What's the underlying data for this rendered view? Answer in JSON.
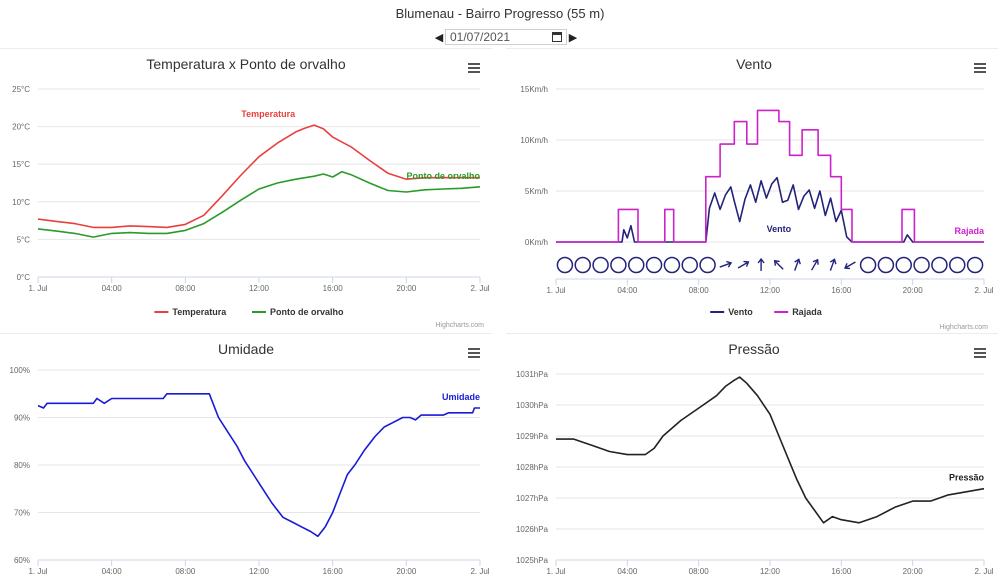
{
  "page": {
    "title": "Blumenau - Bairro Progresso (55 m)",
    "date_value": "01/07/2021",
    "prev_icon": "caret-left-icon",
    "next_icon": "caret-right-icon",
    "calendar_icon": "calendar-icon"
  },
  "chart_data": [
    {
      "id": "temp",
      "type": "line",
      "title": "Temperatura x Ponto de orvalho",
      "xlim": [
        0,
        24
      ],
      "ylim": [
        0,
        25
      ],
      "x_ticks": [
        0,
        4,
        8,
        12,
        16,
        20,
        24
      ],
      "x_tick_labels": [
        "1. Jul",
        "04:00",
        "08:00",
        "12:00",
        "16:00",
        "20:00",
        "2. Jul"
      ],
      "y_ticks": [
        0,
        5,
        10,
        15,
        20,
        25
      ],
      "y_tick_labels": [
        "0°C",
        "5°C",
        "10°C",
        "15°C",
        "20°C",
        "25°C"
      ],
      "grid": true,
      "legend": "bottom-center",
      "credits": "Highcharts.com",
      "series": [
        {
          "name": "Temperatura",
          "color": "#e8403e",
          "label_at": "peak",
          "points": [
            [
              0,
              7.7
            ],
            [
              1,
              7.4
            ],
            [
              2,
              7.1
            ],
            [
              3,
              6.6
            ],
            [
              4,
              6.6
            ],
            [
              5,
              6.8
            ],
            [
              6,
              6.7
            ],
            [
              7,
              6.6
            ],
            [
              8,
              7.0
            ],
            [
              9,
              8.2
            ],
            [
              10,
              10.8
            ],
            [
              11,
              13.5
            ],
            [
              12,
              16.0
            ],
            [
              13,
              17.8
            ],
            [
              14,
              19.3
            ],
            [
              14.5,
              19.8
            ],
            [
              15,
              20.2
            ],
            [
              15.5,
              19.7
            ],
            [
              16,
              18.6
            ],
            [
              17,
              17.3
            ],
            [
              18,
              15.5
            ],
            [
              19,
              13.8
            ],
            [
              20,
              13.0
            ],
            [
              21,
              13.2
            ],
            [
              22,
              13.2
            ],
            [
              23,
              13.2
            ],
            [
              24,
              13.2
            ]
          ]
        },
        {
          "name": "Ponto de orvalho",
          "color": "#2a9a2a",
          "label_at": "end",
          "points": [
            [
              0,
              6.4
            ],
            [
              1,
              6.1
            ],
            [
              2,
              5.8
            ],
            [
              3,
              5.3
            ],
            [
              4,
              5.8
            ],
            [
              5,
              5.9
            ],
            [
              6,
              5.8
            ],
            [
              7,
              5.8
            ],
            [
              8,
              6.2
            ],
            [
              9,
              7.1
            ],
            [
              10,
              8.6
            ],
            [
              11,
              10.2
            ],
            [
              12,
              11.7
            ],
            [
              13,
              12.5
            ],
            [
              14,
              13.0
            ],
            [
              15,
              13.4
            ],
            [
              15.5,
              13.7
            ],
            [
              16,
              13.3
            ],
            [
              16.5,
              14.0
            ],
            [
              17,
              13.6
            ],
            [
              18,
              12.5
            ],
            [
              19,
              11.5
            ],
            [
              20,
              11.3
            ],
            [
              21,
              11.6
            ],
            [
              22,
              11.7
            ],
            [
              23,
              11.8
            ],
            [
              24,
              12.0
            ]
          ]
        }
      ]
    },
    {
      "id": "vento",
      "type": "line",
      "title": "Vento",
      "xlim": [
        0,
        24
      ],
      "ylim": [
        0,
        15
      ],
      "x_ticks": [
        0,
        4,
        8,
        12,
        16,
        20,
        24
      ],
      "x_tick_labels": [
        "1. Jul",
        "04:00",
        "08:00",
        "12:00",
        "16:00",
        "20:00",
        "2. Jul"
      ],
      "y_ticks": [
        0,
        5,
        10,
        15
      ],
      "y_tick_labels": [
        "0Km/h",
        "5Km/h",
        "10Km/h",
        "15Km/h"
      ],
      "grid": true,
      "legend": "bottom-center",
      "credits": "Highcharts.com",
      "series": [
        {
          "name": "Vento",
          "color": "#23237a",
          "label_at": "mid",
          "points": [
            [
              0,
              0
            ],
            [
              3.7,
              0
            ],
            [
              3.8,
              1.2
            ],
            [
              4.0,
              0.4
            ],
            [
              4.2,
              1.6
            ],
            [
              4.4,
              0
            ],
            [
              5.5,
              0
            ],
            [
              6.0,
              0
            ],
            [
              8.4,
              0
            ],
            [
              8.6,
              3.3
            ],
            [
              8.9,
              4.8
            ],
            [
              9.2,
              3.2
            ],
            [
              9.5,
              4.6
            ],
            [
              9.8,
              5.4
            ],
            [
              10.0,
              4.0
            ],
            [
              10.3,
              2.0
            ],
            [
              10.6,
              4.2
            ],
            [
              10.9,
              5.6
            ],
            [
              11.2,
              3.9
            ],
            [
              11.5,
              6.0
            ],
            [
              11.8,
              4.3
            ],
            [
              12.1,
              5.7
            ],
            [
              12.4,
              6.3
            ],
            [
              12.7,
              3.9
            ],
            [
              13.0,
              4.1
            ],
            [
              13.3,
              5.6
            ],
            [
              13.6,
              3.2
            ],
            [
              13.9,
              4.5
            ],
            [
              14.2,
              5.1
            ],
            [
              14.5,
              3.3
            ],
            [
              14.8,
              5.0
            ],
            [
              15.1,
              2.6
            ],
            [
              15.4,
              4.3
            ],
            [
              15.7,
              2.0
            ],
            [
              16.0,
              3.1
            ],
            [
              16.3,
              0.5
            ],
            [
              16.6,
              0
            ],
            [
              19.5,
              0
            ],
            [
              19.7,
              0.7
            ],
            [
              20.0,
              0
            ],
            [
              24,
              0
            ]
          ]
        },
        {
          "name": "Rajada",
          "color": "#cc22cc",
          "label_at": "end",
          "points": [
            [
              0,
              0
            ],
            [
              3.5,
              0
            ],
            [
              3.5,
              3.2
            ],
            [
              4.6,
              3.2
            ],
            [
              4.6,
              0
            ],
            [
              6.1,
              0
            ],
            [
              6.1,
              3.2
            ],
            [
              6.6,
              3.2
            ],
            [
              6.6,
              0
            ],
            [
              8.4,
              0
            ],
            [
              8.4,
              6.4
            ],
            [
              9.2,
              6.4
            ],
            [
              9.2,
              9.6
            ],
            [
              10.0,
              9.6
            ],
            [
              10.0,
              11.8
            ],
            [
              10.7,
              11.8
            ],
            [
              10.7,
              9.6
            ],
            [
              11.3,
              9.6
            ],
            [
              11.3,
              12.9
            ],
            [
              12.5,
              12.9
            ],
            [
              12.5,
              11.8
            ],
            [
              13.1,
              11.8
            ],
            [
              13.1,
              8.5
            ],
            [
              13.8,
              8.5
            ],
            [
              13.8,
              11.0
            ],
            [
              14.7,
              11.0
            ],
            [
              14.7,
              8.5
            ],
            [
              15.4,
              8.5
            ],
            [
              15.4,
              6.4
            ],
            [
              16.0,
              6.4
            ],
            [
              16.0,
              3.2
            ],
            [
              16.6,
              3.2
            ],
            [
              16.6,
              0
            ],
            [
              19.4,
              0
            ],
            [
              19.4,
              3.2
            ],
            [
              20.1,
              3.2
            ],
            [
              20.1,
              0
            ],
            [
              24,
              0
            ]
          ]
        }
      ],
      "direction_row": [
        {
          "h": 0.5,
          "icon": "calm-circle-icon"
        },
        {
          "h": 1.5,
          "icon": "calm-circle-icon"
        },
        {
          "h": 2.5,
          "icon": "calm-circle-icon"
        },
        {
          "h": 3.5,
          "icon": "calm-circle-icon"
        },
        {
          "h": 4.5,
          "icon": "calm-circle-icon"
        },
        {
          "h": 5.5,
          "icon": "calm-circle-icon"
        },
        {
          "h": 6.5,
          "icon": "calm-circle-icon"
        },
        {
          "h": 7.5,
          "icon": "calm-circle-icon"
        },
        {
          "h": 8.5,
          "icon": "calm-circle-icon"
        },
        {
          "h": 9.5,
          "icon": "wind-arrow-icon",
          "dir": 250
        },
        {
          "h": 10.5,
          "icon": "wind-arrow-icon",
          "dir": 240
        },
        {
          "h": 11.5,
          "icon": "wind-arrow-icon",
          "dir": 180
        },
        {
          "h": 12.5,
          "icon": "wind-arrow-icon",
          "dir": 135
        },
        {
          "h": 13.5,
          "icon": "wind-arrow-icon",
          "dir": 200
        },
        {
          "h": 14.5,
          "icon": "wind-arrow-icon",
          "dir": 210
        },
        {
          "h": 15.5,
          "icon": "wind-arrow-icon",
          "dir": 200
        },
        {
          "h": 16.5,
          "icon": "wind-arrow-icon",
          "dir": 60
        },
        {
          "h": 17.5,
          "icon": "calm-circle-icon"
        },
        {
          "h": 18.5,
          "icon": "calm-circle-icon"
        },
        {
          "h": 19.5,
          "icon": "calm-circle-icon"
        },
        {
          "h": 20.5,
          "icon": "calm-circle-icon"
        },
        {
          "h": 21.5,
          "icon": "calm-circle-icon"
        },
        {
          "h": 22.5,
          "icon": "calm-circle-icon"
        },
        {
          "h": 23.5,
          "icon": "calm-circle-icon"
        }
      ]
    },
    {
      "id": "umidade",
      "type": "line",
      "title": "Umidade",
      "xlim": [
        0,
        24
      ],
      "ylim": [
        60,
        100
      ],
      "x_ticks": [
        0,
        4,
        8,
        12,
        16,
        20,
        24
      ],
      "x_tick_labels": [
        "1. Jul",
        "04:00",
        "08:00",
        "12:00",
        "16:00",
        "20:00",
        "2. Jul"
      ],
      "y_ticks": [
        60,
        70,
        80,
        90,
        100
      ],
      "y_tick_labels": [
        "60%",
        "70%",
        "80%",
        "90%",
        "100%"
      ],
      "grid": true,
      "legend": "none",
      "series": [
        {
          "name": "Umidade",
          "color": "#1a1ad6",
          "label_at": "end",
          "points": [
            [
              0,
              92.5
            ],
            [
              0.3,
              92
            ],
            [
              0.5,
              93
            ],
            [
              3,
              93
            ],
            [
              3.2,
              94
            ],
            [
              3.6,
              93
            ],
            [
              4,
              94
            ],
            [
              6.8,
              94
            ],
            [
              7,
              95
            ],
            [
              9.3,
              95
            ],
            [
              9.8,
              90
            ],
            [
              10.3,
              87
            ],
            [
              10.8,
              84
            ],
            [
              11.2,
              81
            ],
            [
              11.7,
              78
            ],
            [
              12.2,
              75
            ],
            [
              12.7,
              72
            ],
            [
              13.3,
              69
            ],
            [
              13.8,
              68
            ],
            [
              14.3,
              67
            ],
            [
              14.8,
              66
            ],
            [
              15.2,
              65
            ],
            [
              15.6,
              67
            ],
            [
              16.0,
              70
            ],
            [
              16.4,
              74
            ],
            [
              16.8,
              78
            ],
            [
              17.2,
              80
            ],
            [
              17.7,
              83
            ],
            [
              18.3,
              86
            ],
            [
              18.8,
              88
            ],
            [
              19.3,
              89
            ],
            [
              19.8,
              90
            ],
            [
              20.2,
              90
            ],
            [
              20.5,
              89.5
            ],
            [
              20.8,
              90.5
            ],
            [
              22,
              90.5
            ],
            [
              22.3,
              91
            ],
            [
              23.6,
              91
            ],
            [
              23.7,
              92
            ],
            [
              24,
              92
            ]
          ]
        }
      ]
    },
    {
      "id": "pressao",
      "type": "line",
      "title": "Pressão",
      "xlim": [
        0,
        24
      ],
      "ylim": [
        1025,
        1031
      ],
      "x_ticks": [
        0,
        4,
        8,
        12,
        16,
        20,
        24
      ],
      "x_tick_labels": [
        "1. Jul",
        "04:00",
        "08:00",
        "12:00",
        "16:00",
        "20:00",
        "2. Jul"
      ],
      "y_ticks": [
        1025,
        1026,
        1027,
        1028,
        1029,
        1030,
        1031
      ],
      "y_tick_labels": [
        "1025hPa",
        "1026hPa",
        "1027hPa",
        "1028hPa",
        "1029hPa",
        "1030hPa",
        "1031hPa"
      ],
      "grid": true,
      "legend": "none",
      "series": [
        {
          "name": "Pressão",
          "color": "#222222",
          "label_at": "end",
          "points": [
            [
              0,
              1028.9
            ],
            [
              1,
              1028.9
            ],
            [
              2,
              1028.7
            ],
            [
              3,
              1028.5
            ],
            [
              4,
              1028.4
            ],
            [
              5,
              1028.4
            ],
            [
              5.5,
              1028.6
            ],
            [
              6,
              1029.0
            ],
            [
              7,
              1029.5
            ],
            [
              8,
              1029.9
            ],
            [
              9,
              1030.3
            ],
            [
              9.5,
              1030.6
            ],
            [
              10,
              1030.8
            ],
            [
              10.3,
              1030.9
            ],
            [
              10.7,
              1030.7
            ],
            [
              11.3,
              1030.3
            ],
            [
              12,
              1029.7
            ],
            [
              12.5,
              1029.0
            ],
            [
              13,
              1028.3
            ],
            [
              13.5,
              1027.6
            ],
            [
              14,
              1027.0
            ],
            [
              14.5,
              1026.6
            ],
            [
              15,
              1026.2
            ],
            [
              15.5,
              1026.4
            ],
            [
              16,
              1026.3
            ],
            [
              17,
              1026.2
            ],
            [
              18,
              1026.4
            ],
            [
              19,
              1026.7
            ],
            [
              20,
              1026.9
            ],
            [
              21,
              1026.9
            ],
            [
              22,
              1027.1
            ],
            [
              23,
              1027.2
            ],
            [
              24,
              1027.3
            ]
          ]
        }
      ]
    }
  ]
}
